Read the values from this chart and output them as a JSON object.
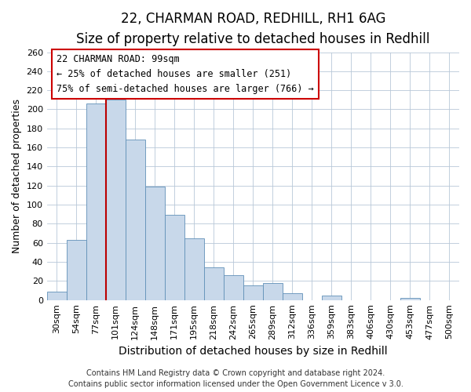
{
  "title": "22, CHARMAN ROAD, REDHILL, RH1 6AG",
  "subtitle": "Size of property relative to detached houses in Redhill",
  "xlabel": "Distribution of detached houses by size in Redhill",
  "ylabel": "Number of detached properties",
  "bin_labels": [
    "30sqm",
    "54sqm",
    "77sqm",
    "101sqm",
    "124sqm",
    "148sqm",
    "171sqm",
    "195sqm",
    "218sqm",
    "242sqm",
    "265sqm",
    "289sqm",
    "312sqm",
    "336sqm",
    "359sqm",
    "383sqm",
    "406sqm",
    "430sqm",
    "453sqm",
    "477sqm",
    "500sqm"
  ],
  "bar_heights": [
    9,
    63,
    206,
    210,
    168,
    119,
    89,
    65,
    34,
    26,
    15,
    18,
    7,
    0,
    5,
    0,
    0,
    0,
    2,
    0,
    0
  ],
  "bar_color": "#c8d8ea",
  "bar_edge_color": "#6090b8",
  "vline_x_index": 3,
  "vline_color": "#bb0000",
  "annotation_title": "22 CHARMAN ROAD: 99sqm",
  "annotation_line1": "← 25% of detached houses are smaller (251)",
  "annotation_line2": "75% of semi-detached houses are larger (766) →",
  "ylim": [
    0,
    260
  ],
  "yticks": [
    0,
    20,
    40,
    60,
    80,
    100,
    120,
    140,
    160,
    180,
    200,
    220,
    240,
    260
  ],
  "footer1": "Contains HM Land Registry data © Crown copyright and database right 2024.",
  "footer2": "Contains public sector information licensed under the Open Government Licence v 3.0.",
  "title_fontsize": 12,
  "subtitle_fontsize": 10,
  "xlabel_fontsize": 10,
  "ylabel_fontsize": 9,
  "tick_fontsize": 8,
  "annotation_fontsize": 8.5,
  "footer_fontsize": 7
}
